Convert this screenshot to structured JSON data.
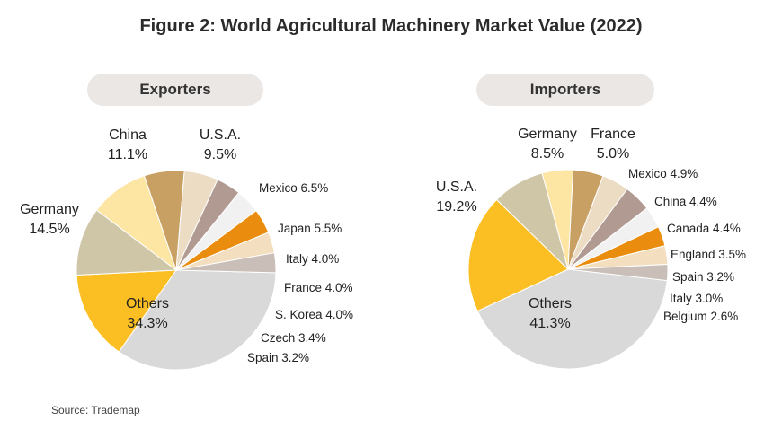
{
  "title": "Figure 2: World Agricultural Machinery Market Value (2022)",
  "source": "Source: Trademap",
  "colors": {
    "panel_bg": "#ebe7e4"
  },
  "chart_data": [
    {
      "type": "pie",
      "title": "Exporters",
      "slices": [
        {
          "name": "Others",
          "value": 34.3,
          "label": "Others",
          "pct": "34.3%",
          "color": "#d9d9d9"
        },
        {
          "name": "Germany",
          "value": 14.5,
          "label": "Germany",
          "pct": "14.5%",
          "color": "#fbbf24"
        },
        {
          "name": "China",
          "value": 11.1,
          "label": "China",
          "pct": "11.1%",
          "color": "#cfc6a8"
        },
        {
          "name": "U.S.A.",
          "value": 9.5,
          "label": "U.S.A.",
          "pct": "9.5%",
          "color": "#fde5a3"
        },
        {
          "name": "Mexico",
          "value": 6.5,
          "label": "Mexico 6.5%",
          "color": "#c9a063"
        },
        {
          "name": "Japan",
          "value": 5.5,
          "label": "Japan 5.5%",
          "color": "#ecdcc4"
        },
        {
          "name": "Italy",
          "value": 4.0,
          "label": "Italy 4.0%",
          "color": "#b09a92"
        },
        {
          "name": "France",
          "value": 4.0,
          "label": "France 4.0%",
          "color": "#f1f1f1"
        },
        {
          "name": "S. Korea",
          "value": 4.0,
          "label": "S. Korea 4.0%",
          "color": "#ea8d0f"
        },
        {
          "name": "Czech",
          "value": 3.4,
          "label": "Czech 3.4%",
          "color": "#f3dfc0"
        },
        {
          "name": "Spain",
          "value": 3.2,
          "label": "Spain 3.2%",
          "color": "#c9bfb8"
        }
      ]
    },
    {
      "type": "pie",
      "title": "Importers",
      "slices": [
        {
          "name": "Others",
          "value": 41.3,
          "label": "Others",
          "pct": "41.3%",
          "color": "#d9d9d9"
        },
        {
          "name": "U.S.A.",
          "value": 19.2,
          "label": "U.S.A.",
          "pct": "19.2%",
          "color": "#fbbf24"
        },
        {
          "name": "Germany",
          "value": 8.5,
          "label": "Germany",
          "pct": "8.5%",
          "color": "#cfc6a8"
        },
        {
          "name": "France",
          "value": 5.0,
          "label": "France",
          "pct": "5.0%",
          "color": "#fde5a3"
        },
        {
          "name": "Mexico",
          "value": 4.9,
          "label": "Mexico 4.9%",
          "color": "#c9a063"
        },
        {
          "name": "China",
          "value": 4.4,
          "label": "China 4.4%",
          "color": "#ecdcc4"
        },
        {
          "name": "Canada",
          "value": 4.4,
          "label": "Canada 4.4%",
          "color": "#b09a92"
        },
        {
          "name": "England",
          "value": 3.5,
          "label": "England 3.5%",
          "color": "#f1f1f1"
        },
        {
          "name": "Spain",
          "value": 3.2,
          "label": "Spain 3.2%",
          "color": "#ea8d0f"
        },
        {
          "name": "Italy",
          "value": 3.0,
          "label": "Italy 3.0%",
          "color": "#f3dfc0"
        },
        {
          "name": "Belgium",
          "value": 2.6,
          "label": "Belgium 2.6%",
          "color": "#c9bfb8"
        }
      ]
    }
  ]
}
